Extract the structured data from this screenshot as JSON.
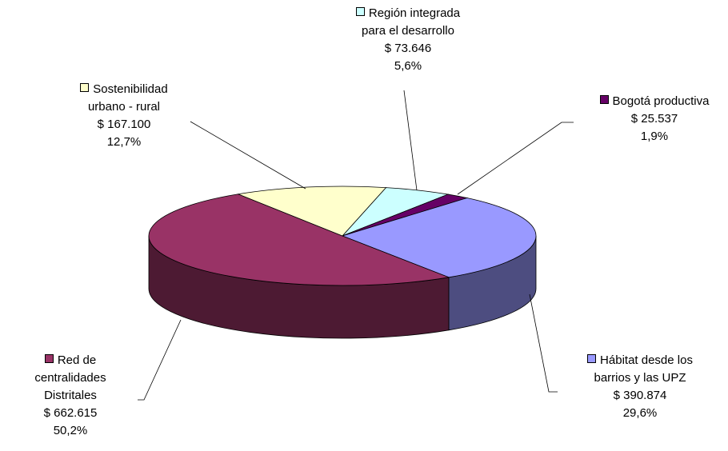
{
  "chart_data": {
    "type": "pie3d",
    "categories": [
      "Región integrada\npara el desarrollo",
      "Bogotá productiva",
      "Hábitat desde los\nbarrios y las UPZ",
      "Red de\ncentralidades\nDistritales",
      "Sostenibilidad\nurbano - rural"
    ],
    "values": [
      73646,
      25537,
      390874,
      662615,
      167100
    ],
    "value_labels": [
      "$ 73.646",
      "$ 25.537",
      "$ 390.874",
      "$ 662.615",
      "$ 167.100"
    ],
    "percents": [
      5.6,
      1.9,
      29.6,
      50.2,
      12.7
    ],
    "percent_labels": [
      "5,6%",
      "1,9%",
      "29,6%",
      "50,2%",
      "12,7%"
    ],
    "colors": [
      "#ccffff",
      "#660066",
      "#9999ff",
      "#993366",
      "#ffffcc"
    ]
  }
}
